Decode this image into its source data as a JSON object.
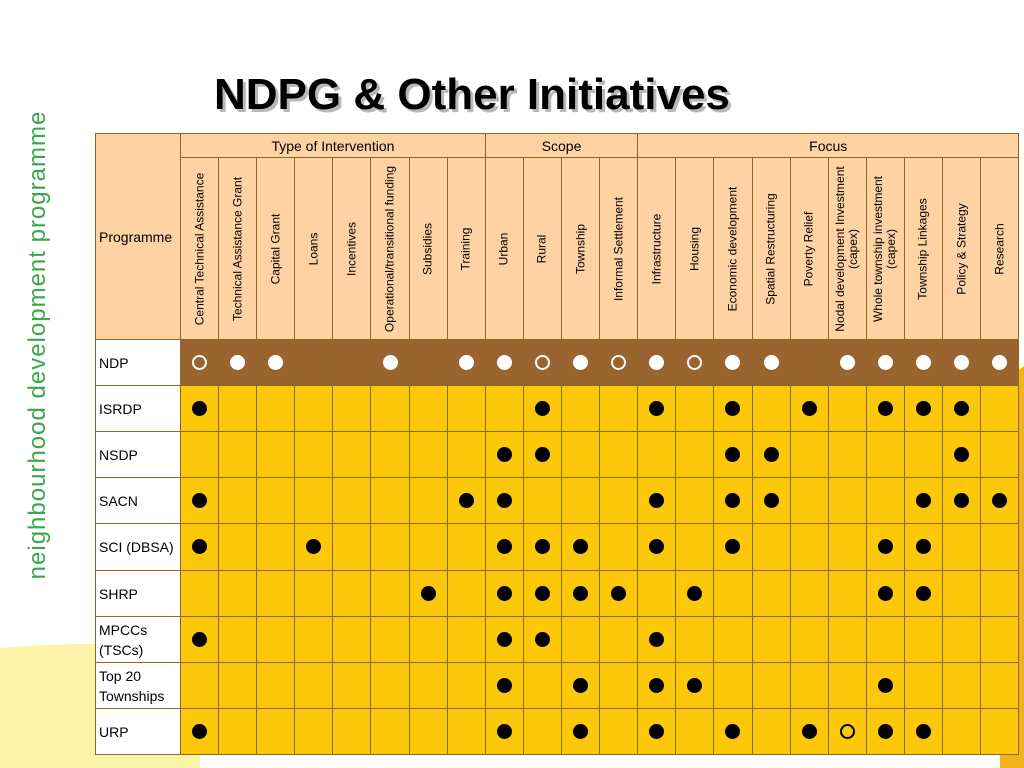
{
  "side_title": "neighbourhood development programme",
  "title": "NDPG & Other Initiatives",
  "table": {
    "corner_label": "Programme",
    "groups": [
      {
        "label": "Type of Intervention",
        "span": 8
      },
      {
        "label": "Scope",
        "span": 4
      },
      {
        "label": "Focus",
        "span": 10
      }
    ],
    "columns": [
      "Central Technical Assistance",
      "Technical Assistance Grant",
      "Capital Grant",
      "Loans",
      "Incentives",
      "Operational/transitional funding",
      "Subsidies",
      "Training",
      "Urban",
      "Rural",
      "Township",
      "Informal Settlement",
      "Infrastructure",
      "Housing",
      "Economic development",
      "Spatial Restructuring",
      "Poverty Relief",
      "Nodal development Investment (capex)",
      "Whole township investment (capex)",
      "Township Linkages",
      "Policy & Strategy",
      "Research"
    ],
    "legend_codes": {
      "F": "filled circle",
      "O": "hollow circle",
      "": "empty"
    },
    "rows": [
      {
        "label": "NDP",
        "cells": [
          "O",
          "F",
          "F",
          "",
          "",
          "F",
          "",
          "F",
          "F",
          "O",
          "F",
          "O",
          "F",
          "O",
          "F",
          "F",
          "",
          "F",
          "F",
          "F",
          "F",
          "F"
        ]
      },
      {
        "label": "ISRDP",
        "cells": [
          "F",
          "",
          "",
          "",
          "",
          "",
          "",
          "",
          "",
          "F",
          "",
          "",
          "F",
          "",
          "F",
          "",
          "F",
          "",
          "F",
          "F",
          "F",
          ""
        ]
      },
      {
        "label": "NSDP",
        "cells": [
          "",
          "",
          "",
          "",
          "",
          "",
          "",
          "",
          "F",
          "F",
          "",
          "",
          "",
          "",
          "F",
          "F",
          "",
          "",
          "",
          "",
          "F",
          ""
        ]
      },
      {
        "label": "SACN",
        "cells": [
          "F",
          "",
          "",
          "",
          "",
          "",
          "",
          "F",
          "F",
          "",
          "",
          "",
          "F",
          "",
          "F",
          "F",
          "",
          "",
          "",
          "F",
          "F",
          "F"
        ]
      },
      {
        "label": "SCI (DBSA)",
        "cells": [
          "F",
          "",
          "",
          "F",
          "",
          "",
          "",
          "",
          "F",
          "F",
          "F",
          "",
          "F",
          "",
          "F",
          "",
          "",
          "",
          "F",
          "F",
          "",
          ""
        ]
      },
      {
        "label": "SHRP",
        "cells": [
          "",
          "",
          "",
          "",
          "",
          "",
          "F",
          "",
          "F",
          "F",
          "F",
          "F",
          "",
          "F",
          "",
          "",
          "",
          "",
          "F",
          "F",
          "",
          ""
        ]
      },
      {
        "label": "MPCCs (TSCs)",
        "cells": [
          "F",
          "",
          "",
          "",
          "",
          "",
          "",
          "",
          "F",
          "F",
          "",
          "",
          "F",
          "",
          "",
          "",
          "",
          "",
          "",
          "",
          "",
          ""
        ]
      },
      {
        "label": "Top 20 Townships",
        "cells": [
          "",
          "",
          "",
          "",
          "",
          "",
          "",
          "",
          "F",
          "",
          "F",
          "",
          "F",
          "F",
          "",
          "",
          "",
          "",
          "F",
          "",
          "",
          ""
        ]
      },
      {
        "label": "URP",
        "cells": [
          "F",
          "",
          "",
          "",
          "",
          "",
          "",
          "",
          "F",
          "",
          "F",
          "",
          "F",
          "",
          "F",
          "",
          "F",
          "O",
          "F",
          "F",
          "",
          ""
        ]
      }
    ]
  },
  "colors": {
    "header_fill": "#ffd2a4",
    "cell_fill": "#fdc70a",
    "ndp_row_fill": "#9a6430",
    "brand_green": "#3aa84a"
  }
}
